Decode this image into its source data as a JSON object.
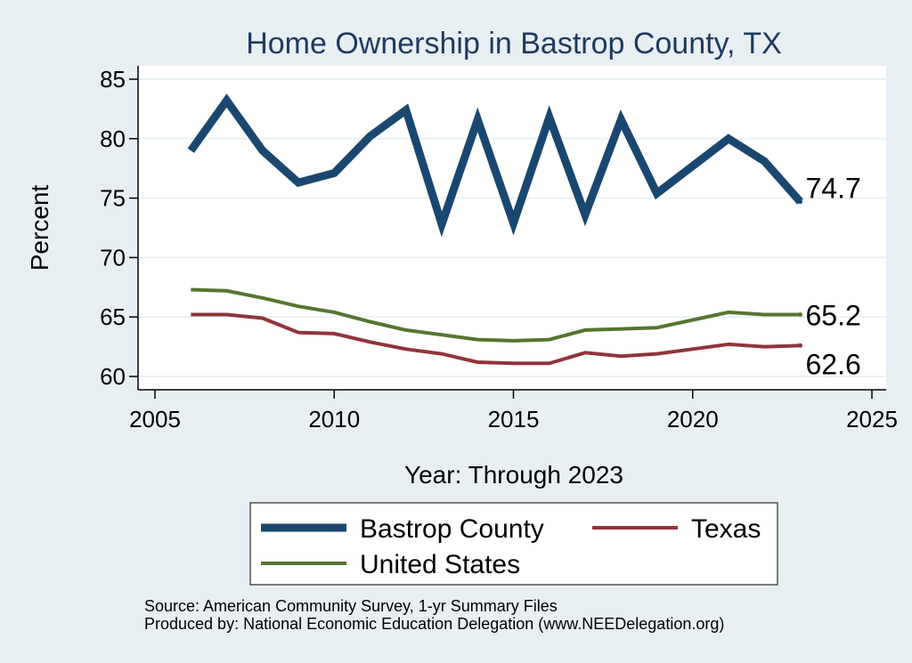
{
  "chart_data": {
    "type": "line",
    "title": "Home Ownership in Bastrop County, TX",
    "xlabel": "Year: Through 2023",
    "ylabel": "Percent",
    "xlim": [
      2005,
      2025
    ],
    "ylim": [
      60,
      85
    ],
    "xticks": [
      2005,
      2010,
      2015,
      2020,
      2025
    ],
    "yticks": [
      60,
      65,
      70,
      75,
      80,
      85
    ],
    "grid": true,
    "legend_position": "bottom",
    "x": [
      2006,
      2007,
      2008,
      2009,
      2010,
      2011,
      2012,
      2013,
      2014,
      2015,
      2016,
      2017,
      2018,
      2019,
      2021,
      2022,
      2023
    ],
    "series": [
      {
        "name": "Bastrop County",
        "color": "#1a476f",
        "values": [
          79.0,
          83.2,
          79.0,
          76.3,
          77.1,
          80.2,
          82.4,
          72.8,
          81.6,
          72.9,
          81.8,
          73.6,
          81.6,
          75.4,
          80.0,
          78.1,
          74.7
        ],
        "end_label": "74.7"
      },
      {
        "name": "Texas",
        "color": "#90353b",
        "values": [
          65.2,
          65.2,
          64.9,
          63.7,
          63.6,
          62.9,
          62.3,
          61.9,
          61.2,
          61.1,
          61.1,
          62.0,
          61.7,
          61.9,
          62.7,
          62.5,
          62.6
        ],
        "end_label": "62.6"
      },
      {
        "name": "United States",
        "color": "#55752f",
        "values": [
          67.3,
          67.2,
          66.6,
          65.9,
          65.4,
          64.6,
          63.9,
          63.5,
          63.1,
          63.0,
          63.1,
          63.9,
          64.0,
          64.1,
          65.4,
          65.2,
          65.2
        ],
        "end_label": "65.2"
      }
    ]
  },
  "footer": {
    "source": "Source: American Community Survey, 1-yr Summary Files",
    "produced_by": "Produced by: National Economic Education Delegation (www.NEEDelegation.org)"
  }
}
